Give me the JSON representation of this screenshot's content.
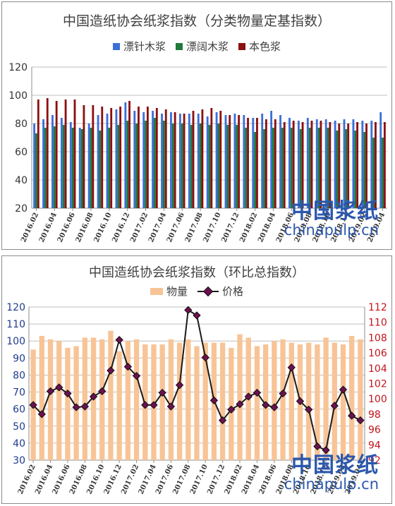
{
  "charts": [
    {
      "title": "中国造纸协会纸浆指数（分类物量定基指数）",
      "watermark": {
        "cn": "中国浆纸",
        "en": "chinapulp.cn"
      }
    },
    {
      "title": "中国造纸协会纸浆指数（环比总指数）",
      "watermark": {
        "cn": "中国浆纸",
        "en": "chinapulp.cn"
      }
    }
  ],
  "chart_data": [
    {
      "type": "bar",
      "title": "中国造纸协会纸浆指数（分类物量定基指数）",
      "categories": [
        "2016.02",
        "2016.03",
        "2016.04",
        "2016.05",
        "2016.06",
        "2016.07",
        "2016.08",
        "2016.09",
        "2016.10",
        "2016.11",
        "2016.12",
        "2017.01",
        "2017.02",
        "2017.03",
        "2017.04",
        "2017.05",
        "2017.06",
        "2017.07",
        "2017.08",
        "2017.09",
        "2017.10",
        "2017.11",
        "2017.12",
        "2018.01",
        "2018.02",
        "2018.03",
        "2018.04",
        "2018.05",
        "2018.06",
        "2018.07",
        "2018.08",
        "2018.09",
        "2018.10",
        "2018.11",
        "2018.12",
        "2019.01",
        "2019.02",
        "2019.03",
        "2019.04"
      ],
      "tick_labels": [
        "2016.02",
        "2016.04",
        "2016.06",
        "2016.08",
        "2016.10",
        "2016.12",
        "2017.02",
        "2017.04",
        "2017.06",
        "2017.08",
        "2017.10",
        "2017.12",
        "2018.02",
        "2018.04",
        "2018.06",
        "2018.08",
        "2018.10",
        "2018.12",
        "2019.02",
        "2019.04"
      ],
      "series": [
        {
          "name": "漂针木浆",
          "color": "#3b6fd8",
          "values": [
            80,
            83,
            86,
            84,
            81,
            77,
            80,
            86,
            87,
            90,
            95,
            89,
            88,
            89,
            87,
            88,
            87,
            87,
            87,
            85,
            88,
            86,
            87,
            86,
            84,
            87,
            89,
            86,
            84,
            82,
            84,
            83,
            83,
            82,
            83,
            83,
            82,
            82,
            88
          ]
        },
        {
          "name": "漂阔木浆",
          "color": "#1e7a3a",
          "values": [
            73,
            77,
            78,
            79,
            77,
            76,
            77,
            75,
            77,
            79,
            82,
            80,
            82,
            84,
            82,
            80,
            80,
            79,
            80,
            79,
            80,
            79,
            79,
            77,
            74,
            76,
            77,
            77,
            77,
            76,
            77,
            77,
            77,
            75,
            76,
            75,
            74,
            70,
            70
          ]
        },
        {
          "name": "本色浆",
          "color": "#8b1010",
          "values": [
            97,
            98,
            96,
            97,
            97,
            93,
            93,
            92,
            91,
            92,
            96,
            92,
            92,
            91,
            90,
            88,
            87,
            89,
            90,
            91,
            89,
            86,
            86,
            84,
            84,
            83,
            83,
            81,
            82,
            81,
            82,
            82,
            81,
            80,
            80,
            81,
            80,
            81,
            81
          ]
        }
      ],
      "ylim": [
        20,
        120
      ],
      "yticks": [
        20,
        40,
        60,
        80,
        100,
        120
      ],
      "grid": true,
      "legend": "top-center"
    },
    {
      "type": "bar+line",
      "title": "中国造纸协会纸浆指数（环比总指数）",
      "categories": [
        "2016.02",
        "2016.03",
        "2016.04",
        "2016.05",
        "2016.06",
        "2016.07",
        "2016.08",
        "2016.09",
        "2016.10",
        "2016.11",
        "2016.12",
        "2017.01",
        "2017.02",
        "2017.03",
        "2017.04",
        "2017.05",
        "2017.06",
        "2017.07",
        "2017.08",
        "2017.09",
        "2017.10",
        "2017.11",
        "2017.12",
        "2018.01",
        "2018.02",
        "2018.03",
        "2018.04",
        "2018.05",
        "2018.06",
        "2018.07",
        "2018.08",
        "2018.09",
        "2018.10",
        "2018.11",
        "2018.12",
        "2019.01",
        "2019.02",
        "2019.03",
        "2019.04"
      ],
      "tick_labels": [
        "2016.02",
        "2016.04",
        "2016.06",
        "2016.08",
        "2016.10",
        "2016.12",
        "2017.02",
        "2017.04",
        "2017.06",
        "2017.08",
        "2017.10",
        "2017.12",
        "2018.02",
        "2018.04",
        "2018.06",
        "2018.08",
        "2018.10",
        "2018.12",
        "2019.02",
        "2019.04"
      ],
      "series": [
        {
          "name": "物量",
          "axis": "left",
          "color": "#f8c496",
          "values": [
            95,
            103,
            101,
            100,
            96,
            97,
            102,
            102,
            101,
            106,
            94,
            100,
            101,
            98,
            98,
            98,
            101,
            99,
            101,
            97,
            99,
            99,
            99,
            96,
            104,
            102,
            97,
            98,
            100,
            101,
            99,
            98,
            99,
            98,
            102,
            99,
            98,
            103,
            101
          ]
        },
        {
          "name": "价格",
          "axis": "right",
          "color": "#1a1a1a",
          "marker_color": "#6e1050",
          "values": [
            99.2,
            98.0,
            101.0,
            101.5,
            100.7,
            98.9,
            99.0,
            100.3,
            101.0,
            103.7,
            107.7,
            104.2,
            103.0,
            99.2,
            99.2,
            100.8,
            99.0,
            101.8,
            111.6,
            110.9,
            105.4,
            99.8,
            97.2,
            98.6,
            99.3,
            100.3,
            100.8,
            99.2,
            98.9,
            100.7,
            104.1,
            99.7,
            98.6,
            93.8,
            93.3,
            99.1,
            101.2,
            97.8,
            97.2
          ]
        }
      ],
      "ylim_left": [
        30,
        120
      ],
      "yticks_left": [
        30,
        40,
        50,
        60,
        70,
        80,
        90,
        100,
        110,
        120
      ],
      "ylim_right": [
        92,
        112
      ],
      "yticks_right": [
        92,
        94,
        96,
        98,
        100,
        102,
        104,
        106,
        108,
        110,
        112
      ],
      "grid": true,
      "legend": "top-center"
    }
  ]
}
